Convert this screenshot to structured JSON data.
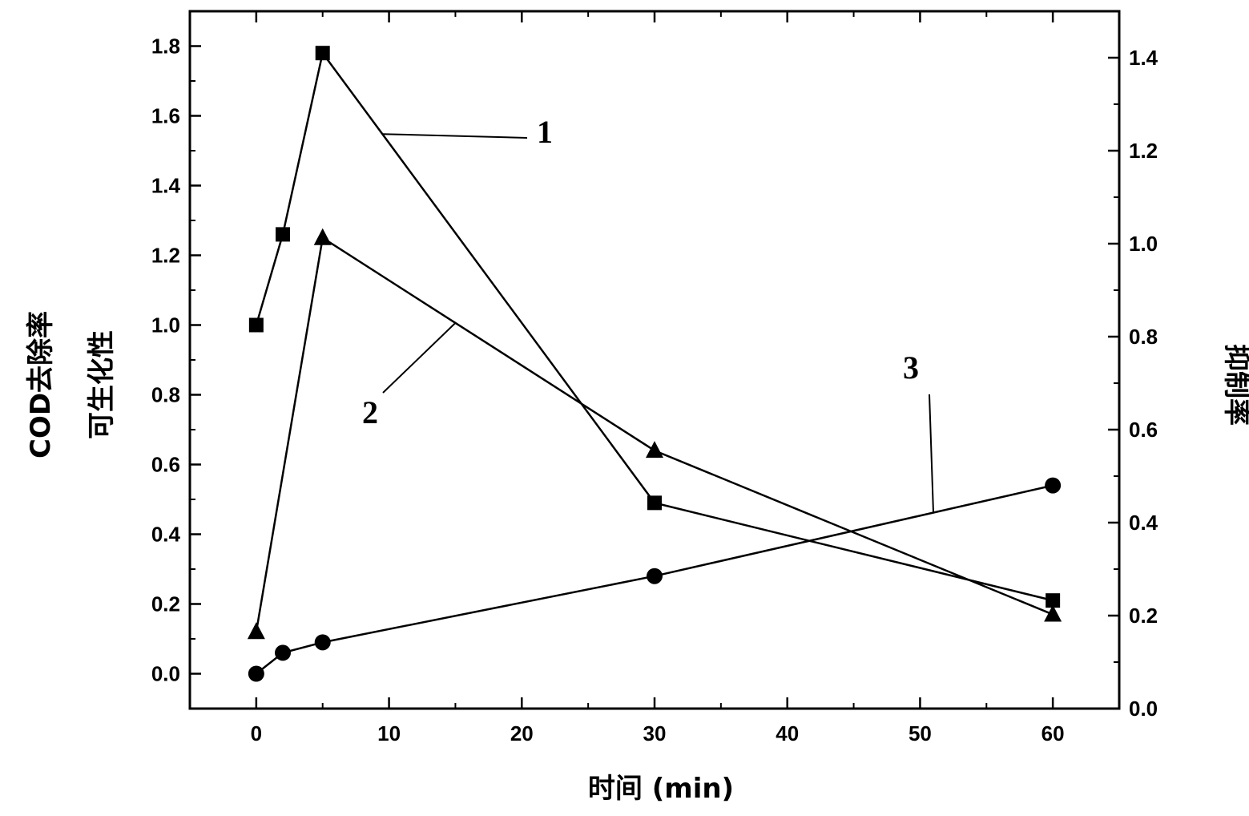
{
  "chart_data": {
    "type": "line",
    "xlabel": "时间 (min)",
    "ylabel_left_lines": [
      "COD去除率",
      "可生化性"
    ],
    "ylabel_right": "抑制率",
    "xlim": [
      -5,
      65
    ],
    "ylim_left": [
      -0.1,
      1.9
    ],
    "ylim_right": [
      0.0,
      1.5
    ],
    "x_ticks": [
      0,
      10,
      20,
      30,
      40,
      50,
      60
    ],
    "y_left_ticks": [
      0.0,
      0.2,
      0.4,
      0.6,
      0.8,
      1.0,
      1.2,
      1.4,
      1.6,
      1.8
    ],
    "y_right_ticks": [
      0.0,
      0.2,
      0.4,
      0.6,
      0.8,
      1.0,
      1.2,
      1.4
    ],
    "series": [
      {
        "name": "1",
        "marker": "square",
        "axis": "left",
        "x": [
          0,
          2,
          5,
          30,
          60
        ],
        "y": [
          1.0,
          1.26,
          1.78,
          0.49,
          0.21
        ]
      },
      {
        "name": "2",
        "marker": "triangle",
        "axis": "left",
        "x": [
          0,
          5,
          30,
          60
        ],
        "y": [
          0.12,
          1.25,
          0.64,
          0.17
        ]
      },
      {
        "name": "3",
        "marker": "circle",
        "axis": "left",
        "x": [
          0,
          2,
          5,
          30,
          60
        ],
        "y": [
          0.0,
          0.06,
          0.09,
          0.28,
          0.54
        ]
      }
    ],
    "callouts": [
      {
        "text": "1",
        "series": 0
      },
      {
        "text": "2",
        "series": 1
      },
      {
        "text": "3",
        "series": 2
      }
    ],
    "grid": false,
    "colors": {
      "line": "#000000",
      "marker": "#000000"
    }
  }
}
